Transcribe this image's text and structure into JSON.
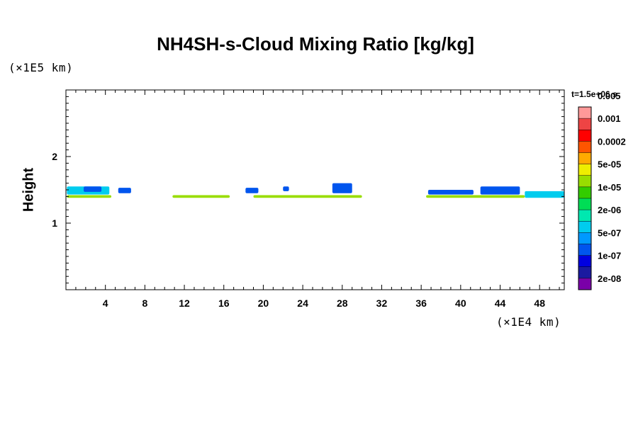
{
  "chart_data": {
    "type": "heatmap",
    "title": "NH4SH-s-Cloud Mixing Ratio [kg/kg]",
    "ylabel": "Height",
    "xunit": "(×1E4 km)",
    "yunit": "(×1E5 km)",
    "time_label": "t=1.5e+06 s",
    "xlim": [
      0,
      50.5
    ],
    "ylim": [
      0,
      3
    ],
    "x_ticks": [
      4,
      8,
      12,
      16,
      20,
      24,
      28,
      32,
      36,
      40,
      44,
      48
    ],
    "y_ticks": [
      1,
      2
    ],
    "grid": false,
    "colorbar": {
      "colors": [
        "#7a00a8",
        "#1a1aa0",
        "#0000e0",
        "#0055ee",
        "#0099ff",
        "#00ccee",
        "#00e8b0",
        "#00dd55",
        "#33cc00",
        "#99dd00",
        "#eeee00",
        "#ffaa00",
        "#ff5500",
        "#ff0000",
        "#ee4444",
        "#ff9999"
      ],
      "labels": [
        "2e-08",
        "1e-07",
        "5e-07",
        "2e-06",
        "1e-05",
        "5e-05",
        "0.0002",
        "0.001",
        "0.005"
      ]
    },
    "cloud_features": [
      {
        "x_range": [
          0.1,
          4.6
        ],
        "y_range": [
          1.38,
          1.42
        ],
        "level": "1e-05"
      },
      {
        "x_range": [
          0.1,
          4.4
        ],
        "y_range": [
          1.43,
          1.55
        ],
        "level": "5e-07"
      },
      {
        "x_range": [
          1.8,
          3.6
        ],
        "y_range": [
          1.47,
          1.55
        ],
        "level": "1e-07"
      },
      {
        "x_range": [
          5.3,
          6.6
        ],
        "y_range": [
          1.45,
          1.53
        ],
        "level": "1e-07"
      },
      {
        "x_range": [
          10.8,
          16.6
        ],
        "y_range": [
          1.38,
          1.42
        ],
        "level": "1e-05"
      },
      {
        "x_range": [
          18.2,
          19.5
        ],
        "y_range": [
          1.45,
          1.53
        ],
        "level": "1e-07"
      },
      {
        "x_range": [
          22.0,
          22.6
        ],
        "y_range": [
          1.48,
          1.55
        ],
        "level": "1e-07"
      },
      {
        "x_range": [
          19.0,
          30.0
        ],
        "y_range": [
          1.38,
          1.42
        ],
        "level": "1e-05"
      },
      {
        "x_range": [
          27.0,
          29.0
        ],
        "y_range": [
          1.45,
          1.6
        ],
        "level": "1e-07"
      },
      {
        "x_range": [
          36.5,
          46.5
        ],
        "y_range": [
          1.38,
          1.42
        ],
        "level": "1e-05"
      },
      {
        "x_range": [
          36.7,
          41.3
        ],
        "y_range": [
          1.43,
          1.5
        ],
        "level": "1e-07"
      },
      {
        "x_range": [
          42.0,
          46.0
        ],
        "y_range": [
          1.43,
          1.55
        ],
        "level": "1e-07"
      },
      {
        "x_range": [
          46.5,
          50.5
        ],
        "y_range": [
          1.38,
          1.48
        ],
        "level": "5e-07"
      }
    ]
  }
}
